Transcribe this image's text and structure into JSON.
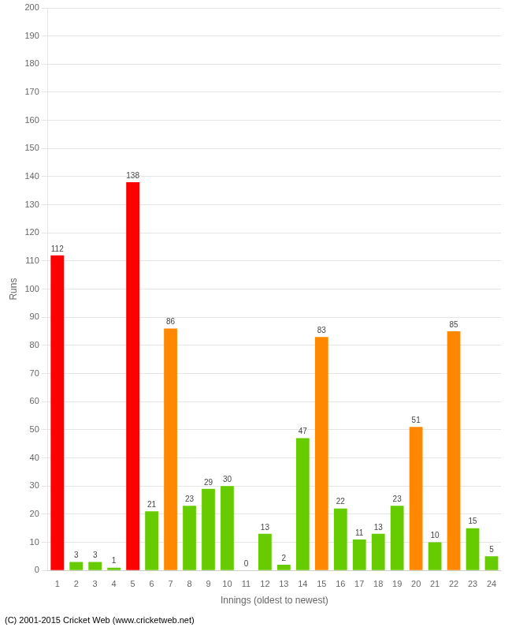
{
  "chart_data": {
    "type": "bar",
    "categories": [
      "1",
      "2",
      "3",
      "4",
      "5",
      "6",
      "7",
      "8",
      "9",
      "10",
      "11",
      "12",
      "13",
      "14",
      "15",
      "16",
      "17",
      "18",
      "19",
      "20",
      "21",
      "22",
      "23",
      "24"
    ],
    "values": [
      112,
      3,
      3,
      1,
      138,
      21,
      86,
      23,
      29,
      30,
      0,
      13,
      2,
      47,
      83,
      22,
      11,
      13,
      23,
      51,
      10,
      85,
      15,
      5
    ],
    "colors": [
      "#ff0000",
      "#66cc00",
      "#66cc00",
      "#66cc00",
      "#ff0000",
      "#66cc00",
      "#ff8800",
      "#66cc00",
      "#66cc00",
      "#66cc00",
      "#66cc00",
      "#66cc00",
      "#66cc00",
      "#66cc00",
      "#ff8800",
      "#66cc00",
      "#66cc00",
      "#66cc00",
      "#66cc00",
      "#ff8800",
      "#66cc00",
      "#ff8800",
      "#66cc00",
      "#66cc00"
    ],
    "xlabel": "Innings (oldest to newest)",
    "ylabel": "Runs",
    "ylim": [
      0,
      200
    ],
    "yticks": [
      0,
      10,
      20,
      30,
      40,
      50,
      60,
      70,
      80,
      90,
      100,
      110,
      120,
      130,
      140,
      150,
      160,
      170,
      180,
      190,
      200
    ],
    "grid": true,
    "data_labels": true,
    "annotations": [
      "(C) 2001-2015 Cricket Web (www.cricketweb.net)"
    ]
  }
}
